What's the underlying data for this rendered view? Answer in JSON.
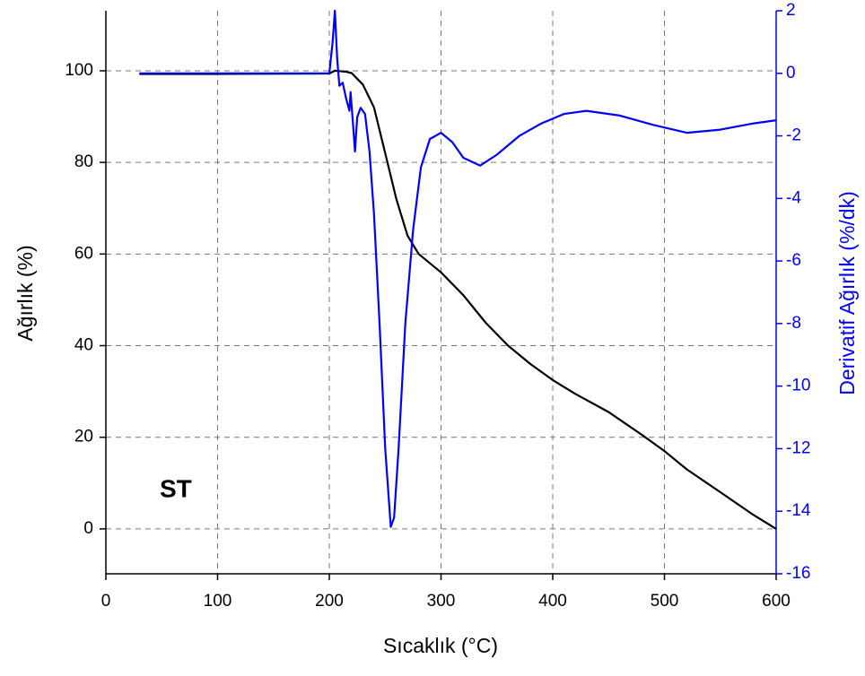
{
  "chart_data": {
    "type": "line",
    "x_label": "Sıcaklık (°C)",
    "y_label": "Ağırlık (%)",
    "y2_label": "Derivatif Ağırlık (%/dk)",
    "annotation": "ST",
    "xlim": [
      0,
      600
    ],
    "xticks": [
      0,
      100,
      200,
      300,
      400,
      500,
      600
    ],
    "ylim": [
      -9.8,
      113.1
    ],
    "yticks": [
      0,
      20,
      40,
      60,
      80,
      100
    ],
    "y2lim": [
      -16,
      2
    ],
    "y2ticks": [
      -16,
      -14,
      -12,
      -10,
      -8,
      -6,
      -4,
      -2,
      0,
      2
    ],
    "grid": true,
    "series": [
      {
        "name": "Ağırlık",
        "color": "#000000",
        "axis": "y",
        "x": [
          30,
          100,
          200,
          205,
          215,
          220,
          230,
          240,
          250,
          260,
          270,
          280,
          300,
          320,
          340,
          360,
          380,
          400,
          420,
          450,
          480,
          500,
          520,
          550,
          580,
          600
        ],
        "values": [
          99.3,
          99.3,
          99.4,
          100,
          99.8,
          99.5,
          97,
          92,
          82,
          72,
          64,
          60,
          56,
          51,
          45,
          40,
          36,
          32.5,
          29.5,
          25.5,
          20.5,
          17,
          13,
          8,
          3,
          0
        ]
      },
      {
        "name": "Derivatif Ağırlık",
        "color": "#0000ff",
        "axis": "y2",
        "x": [
          30,
          100,
          200,
          203,
          205,
          207,
          209,
          212,
          215,
          218,
          219,
          221,
          223,
          225,
          228,
          232,
          236,
          240,
          245,
          250,
          255,
          258,
          262,
          268,
          275,
          282,
          290,
          300,
          310,
          320,
          335,
          350,
          370,
          390,
          410,
          430,
          460,
          490,
          520,
          550,
          580,
          600
        ],
        "values": [
          0,
          0,
          0,
          1,
          2,
          0.5,
          -0.4,
          -0.3,
          -0.8,
          -1.2,
          -0.6,
          -1.5,
          -2.5,
          -1.4,
          -1.1,
          -1.3,
          -2.5,
          -4.5,
          -8,
          -12,
          -14.5,
          -14.2,
          -12,
          -8,
          -5,
          -3,
          -2.1,
          -1.9,
          -2.2,
          -2.7,
          -2.95,
          -2.6,
          -2,
          -1.6,
          -1.3,
          -1.2,
          -1.35,
          -1.65,
          -1.9,
          -1.8,
          -1.6,
          -1.5
        ]
      }
    ]
  }
}
